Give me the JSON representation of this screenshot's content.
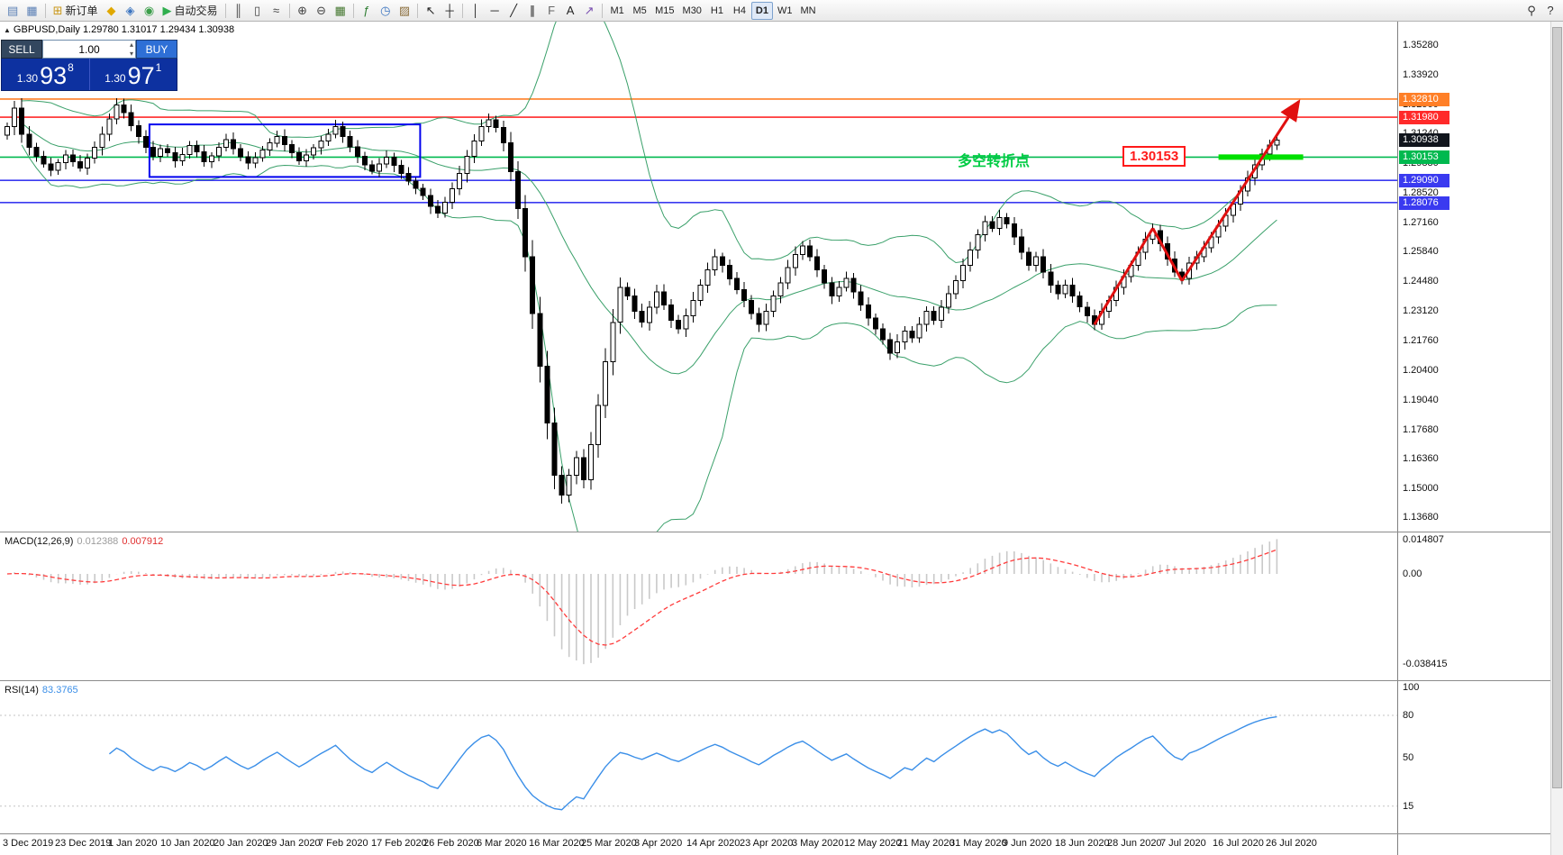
{
  "toolbar": {
    "buttons": [
      {
        "name": "new-chart",
        "glyph": "▤",
        "color": "#5a7fb5"
      },
      {
        "name": "profiles",
        "glyph": "▦",
        "color": "#5a7fb5"
      },
      {
        "sep": true
      },
      {
        "name": "new-order",
        "glyph": "⊞",
        "color": "#c99718",
        "label": "新订单"
      },
      {
        "name": "market-watch",
        "glyph": "◆",
        "color": "#e0a800"
      },
      {
        "name": "data-window",
        "glyph": "◈",
        "color": "#3b74c0"
      },
      {
        "name": "navigator",
        "glyph": "◉",
        "color": "#3b9e4a"
      },
      {
        "name": "auto-trading",
        "glyph": "▶",
        "color": "#2fae4e",
        "label": "自动交易"
      },
      {
        "sep": true
      },
      {
        "name": "bar-chart-mode",
        "glyph": "║",
        "color": "#444444"
      },
      {
        "name": "candlestick-mode",
        "glyph": "▯",
        "color": "#444444"
      },
      {
        "name": "line-chart-mode",
        "glyph": "≈",
        "color": "#444444"
      },
      {
        "sep": true
      },
      {
        "name": "zoom-in",
        "glyph": "⊕",
        "color": "#444444"
      },
      {
        "name": "zoom-out",
        "glyph": "⊖",
        "color": "#444444"
      },
      {
        "name": "tile-windows",
        "glyph": "▦",
        "color": "#44772f"
      },
      {
        "sep": true
      },
      {
        "name": "indicators",
        "glyph": "ƒ",
        "color": "#2e7d32"
      },
      {
        "name": "periods",
        "glyph": "◷",
        "color": "#3b74c0"
      },
      {
        "name": "templates",
        "glyph": "▨",
        "color": "#8a6d3b"
      },
      {
        "sep": true
      },
      {
        "name": "cursor",
        "glyph": "↖",
        "color": "#222222"
      },
      {
        "name": "crosshair",
        "glyph": "┼",
        "color": "#222222"
      },
      {
        "sep": true
      },
      {
        "name": "vertical-line",
        "glyph": "│",
        "color": "#222222"
      },
      {
        "name": "horizontal-line",
        "glyph": "─",
        "color": "#222222"
      },
      {
        "name": "trendline",
        "glyph": "╱",
        "color": "#222222"
      },
      {
        "name": "equidistant-channel",
        "glyph": "∥",
        "color": "#222222"
      },
      {
        "name": "fibonacci",
        "glyph": "F",
        "color": "#666666"
      },
      {
        "name": "text-label",
        "glyph": "A",
        "color": "#222222"
      },
      {
        "name": "arrows",
        "glyph": "↗",
        "color": "#7a4fb0"
      },
      {
        "sep": true
      }
    ],
    "timeframes": [
      {
        "label": "M1"
      },
      {
        "label": "M5"
      },
      {
        "label": "M15"
      },
      {
        "label": "M30"
      },
      {
        "label": "H1"
      },
      {
        "label": "H4"
      },
      {
        "label": "D1",
        "active": true
      },
      {
        "label": "W1"
      },
      {
        "label": "MN"
      }
    ],
    "right_icons": [
      {
        "name": "search",
        "glyph": "⚲"
      },
      {
        "name": "help",
        "glyph": "?"
      }
    ]
  },
  "chart": {
    "symbol_line": "GBPUSD,Daily  1.29780 1.31017 1.29434 1.30938",
    "trade_panel": {
      "sell_label": "SELL",
      "buy_label": "BUY",
      "lot": "1.00",
      "sell_price_prefix": "1.30",
      "sell_price_big": "93",
      "sell_price_sup": "8",
      "buy_price_prefix": "1.30",
      "buy_price_big": "97",
      "buy_price_sup": "1"
    }
  },
  "chart_data": {
    "type": "candlestick",
    "title": "GBPUSD,Daily",
    "ohlc_display": [
      "1.29780",
      "1.31017",
      "1.29434",
      "1.30938"
    ],
    "closes": [
      1.3155,
      1.324,
      1.312,
      1.306,
      1.302,
      1.2985,
      1.2955,
      1.299,
      1.3025,
      1.2995,
      1.2965,
      1.301,
      1.306,
      1.312,
      1.319,
      1.3255,
      1.322,
      1.316,
      1.311,
      1.306,
      1.302,
      1.3055,
      1.3035,
      1.2998,
      1.3028,
      1.3068,
      1.304,
      1.2995,
      1.3022,
      1.306,
      1.3095,
      1.3055,
      1.3018,
      1.2988,
      1.3012,
      1.3048,
      1.308,
      1.311,
      1.3072,
      1.3035,
      1.2998,
      1.3025,
      1.3058,
      1.309,
      1.312,
      1.3155,
      1.311,
      1.3062,
      1.302,
      1.298,
      1.2952,
      1.2985,
      1.3015,
      1.2978,
      1.294,
      1.2905,
      1.2872,
      1.284,
      1.279,
      1.276,
      1.281,
      1.287,
      1.294,
      1.302,
      1.309,
      1.3155,
      1.3185,
      1.315,
      1.308,
      1.295,
      1.278,
      1.256,
      1.23,
      1.206,
      1.18,
      1.156,
      1.147,
      1.156,
      1.164,
      1.154,
      1.17,
      1.188,
      1.208,
      1.226,
      1.242,
      1.238,
      1.231,
      1.226,
      1.233,
      1.24,
      1.234,
      1.227,
      1.223,
      1.229,
      1.236,
      1.243,
      1.25,
      1.256,
      1.252,
      1.246,
      1.241,
      1.236,
      1.23,
      1.225,
      1.231,
      1.238,
      1.244,
      1.251,
      1.257,
      1.261,
      1.256,
      1.25,
      1.244,
      1.238,
      1.242,
      1.246,
      1.24,
      1.234,
      1.228,
      1.223,
      1.218,
      1.212,
      1.217,
      1.222,
      1.219,
      1.225,
      1.231,
      1.227,
      1.233,
      1.239,
      1.245,
      1.252,
      1.259,
      1.266,
      1.272,
      1.269,
      1.274,
      1.271,
      1.265,
      1.258,
      1.252,
      1.256,
      1.249,
      1.243,
      1.239,
      1.243,
      1.238,
      1.233,
      1.229,
      1.225,
      1.231,
      1.236,
      1.242,
      1.247,
      1.252,
      1.258,
      1.264,
      1.268,
      1.262,
      1.255,
      1.249,
      1.246,
      1.253,
      1.256,
      1.26,
      1.265,
      1.27,
      1.275,
      1.28,
      1.286,
      1.292,
      1.298,
      1.303,
      1.307,
      1.3094
    ],
    "x_axis_labels": [
      "3 Dec 2019",
      "23 Dec 2019",
      "1 Jan 2020",
      "10 Jan 2020",
      "20 Jan 2020",
      "29 Jan 2020",
      "7 Feb 2020",
      "17 Feb 2020",
      "26 Feb 2020",
      "6 Mar 2020",
      "16 Mar 2020",
      "25 Mar 2020",
      "3 Apr 2020",
      "14 Apr 2020",
      "23 Apr 2020",
      "3 May 2020",
      "12 May 2020",
      "21 May 2020",
      "31 May 2020",
      "9 Jun 2020",
      "18 Jun 2020",
      "28 Jun 2020",
      "7 Jul 2020",
      "16 Jul 2020",
      "26 Jul 2020"
    ],
    "y_axis_labels": [
      "1.35280",
      "1.33920",
      "1.32560",
      "1.31240",
      "1.29880",
      "1.28520",
      "1.27160",
      "1.25840",
      "1.24480",
      "1.23120",
      "1.21760",
      "1.20400",
      "1.19040",
      "1.17680",
      "1.16360",
      "1.15000",
      "1.13680"
    ],
    "bollinger": {
      "period": 20,
      "deviation": 2,
      "color": "#3aa06a"
    },
    "hlines": [
      {
        "price": 1.3281,
        "label": "1.32810",
        "color": "#ff7f27"
      },
      {
        "price": 1.3198,
        "label": "1.31980",
        "color": "#ff2a2a"
      },
      {
        "price": 1.30153,
        "label": "1.30153",
        "color": "#00b94f"
      },
      {
        "price": 1.2909,
        "label": "1.29090",
        "color": "#3a3af0"
      },
      {
        "price": 1.28076,
        "label": "1.28076",
        "color": "#3a3af0"
      }
    ],
    "current_price": {
      "label": "1.30938",
      "price": 1.30938,
      "badge_color": "#11151d"
    },
    "rectangle": {
      "from_index": 19.5,
      "to_index": 56.6,
      "top_price": 1.3165,
      "bottom_price": 1.2925,
      "color": "#0000ee"
    },
    "zigzag": {
      "color": "#e01010",
      "points": [
        {
          "index": 149,
          "price": 1.225
        },
        {
          "index": 157,
          "price": 1.269
        },
        {
          "index": 161,
          "price": 1.245
        },
        {
          "index": 177,
          "price": 1.327
        }
      ]
    },
    "green_segment": {
      "from_index": 166,
      "to_index": 177.6,
      "price": 1.30153,
      "color": "#00e000"
    },
    "annotation": {
      "text": "多空转折点",
      "color": "#00cc44"
    },
    "price_flag": {
      "text": "1.30153",
      "color": "#ff1a1a"
    },
    "macd": {
      "label": "MACD(12,26,9)",
      "values": [
        "0.012388",
        "0.007912"
      ],
      "fast": 12,
      "slow": 26,
      "signal": 9,
      "axis_labels": [
        "0.014807",
        "0.00",
        "-0.038415"
      ],
      "histogram_color": "#c9c9c9",
      "signal_color": "#ff3b3b"
    },
    "rsi": {
      "label": "RSI(14)",
      "value": "83.3765",
      "period": 14,
      "axis_labels": [
        "100",
        "80",
        "50",
        "15"
      ],
      "line_color": "#3b8fe8"
    }
  }
}
